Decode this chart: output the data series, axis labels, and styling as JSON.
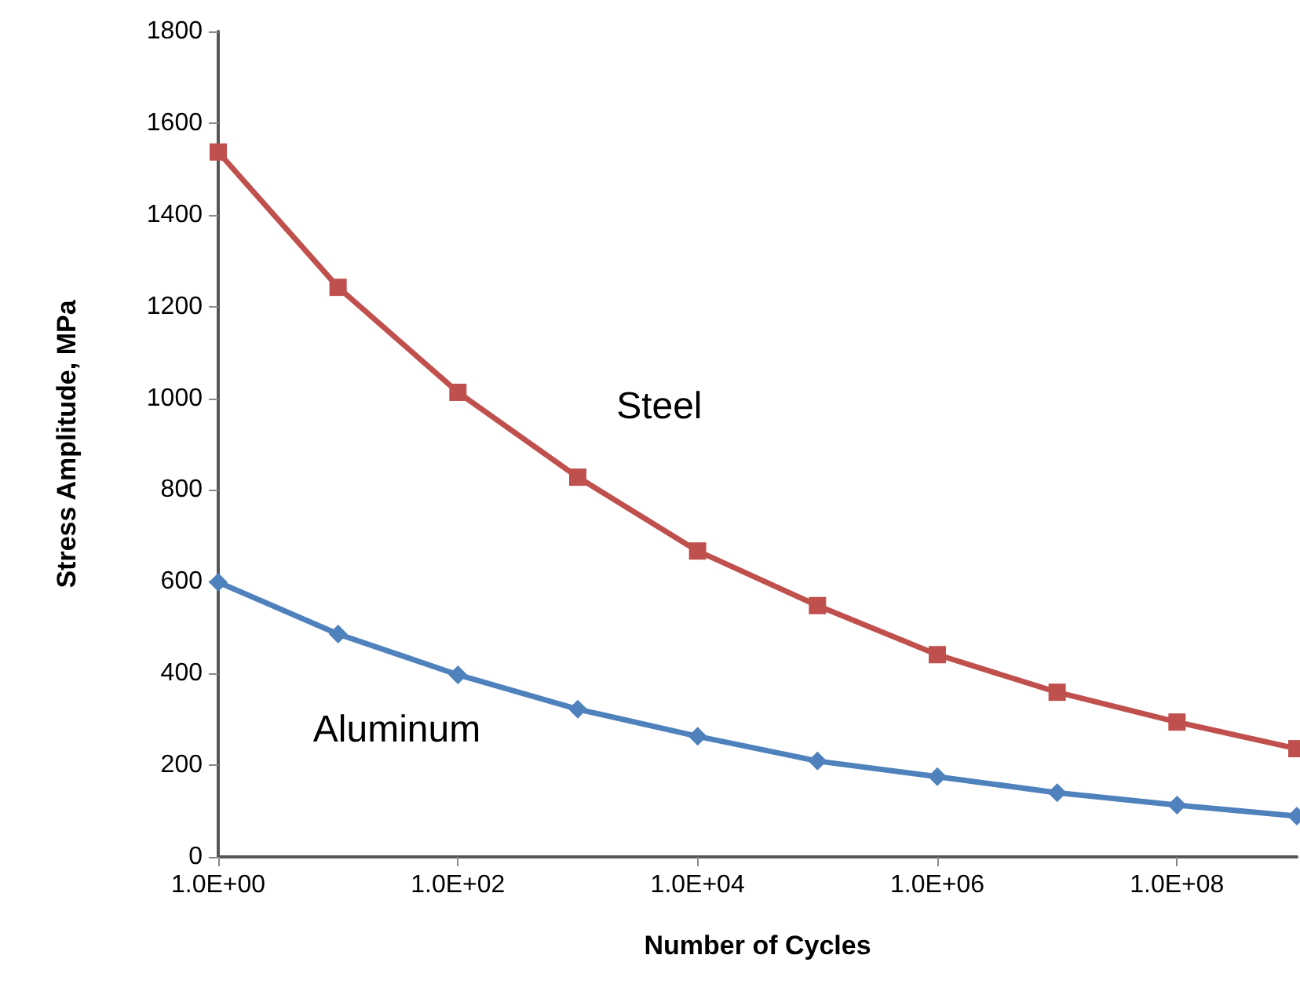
{
  "chart_data": {
    "type": "line",
    "xlabel": "Number of Cycles",
    "ylabel": "Stress Amplitude, MPa",
    "x": [
      1,
      10,
      100,
      1000,
      10000,
      100000,
      1000000,
      10000000,
      100000000,
      1000000000
    ],
    "series": [
      {
        "name": "Steel",
        "color": "#c0504d",
        "marker": "square",
        "values": [
          1537,
          1242,
          1013,
          828,
          667,
          548,
          441,
          359,
          294,
          236
        ]
      },
      {
        "name": "Aluminum",
        "color": "#4f81bd",
        "marker": "diamond",
        "values": [
          599,
          486,
          397,
          322,
          263,
          209,
          175,
          140,
          113,
          89
        ]
      }
    ],
    "log": "x",
    "xlim": [
      1,
      1000000000
    ],
    "xticks": [
      {
        "value": 1,
        "label": "1.0E+00"
      },
      {
        "value": 100,
        "label": "1.0E+02"
      },
      {
        "value": 10000,
        "label": "1.0E+04"
      },
      {
        "value": 1000000,
        "label": "1.0E+06"
      },
      {
        "value": 100000000,
        "label": "1.0E+08"
      }
    ],
    "ylim": [
      0,
      1800
    ],
    "yticks": [
      0,
      200,
      400,
      600,
      800,
      1000,
      1200,
      1400,
      1600,
      1800
    ],
    "grid": false,
    "legend": false,
    "line_style": "solid"
  }
}
